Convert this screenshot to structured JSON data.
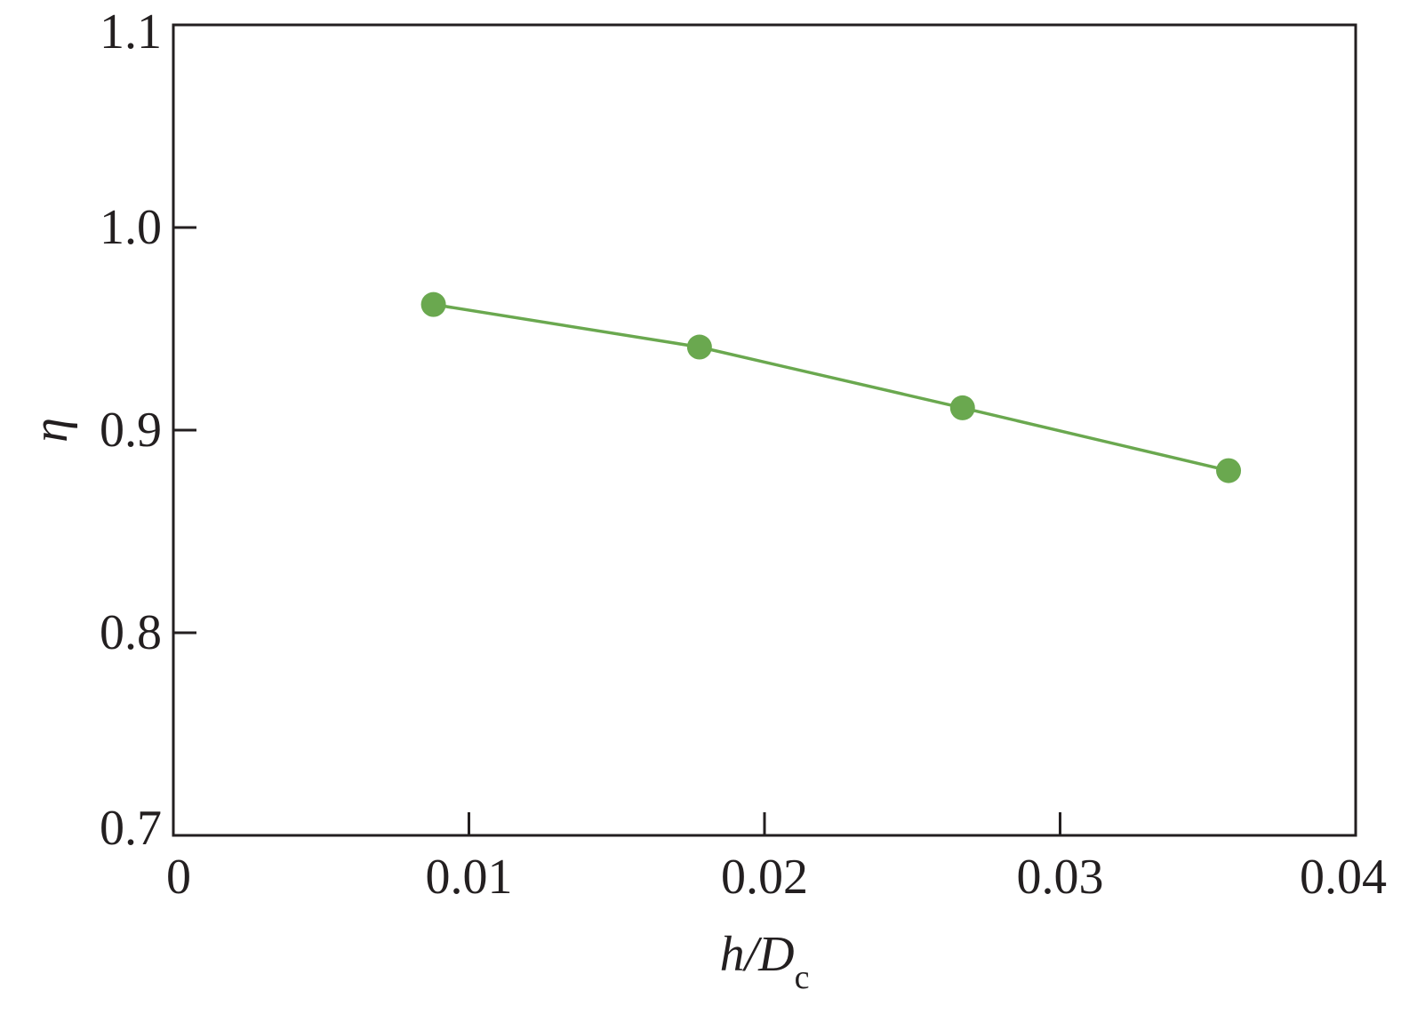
{
  "chart_data": {
    "type": "line",
    "xlabel": {
      "main": "h/D",
      "subscript": "c"
    },
    "ylabel": "η",
    "xlim": [
      0,
      0.04
    ],
    "ylim": [
      0.7,
      1.1
    ],
    "xticks": [
      0,
      0.01,
      0.02,
      0.03,
      0.04
    ],
    "xtick_labels": [
      "0",
      "0.01",
      "0.02",
      "0.03",
      "0.04"
    ],
    "yticks": [
      0.7,
      0.8,
      0.9,
      1.0,
      1.1
    ],
    "ytick_labels": [
      "0.7",
      "0.8",
      "0.9",
      "1.0",
      "1.1"
    ],
    "grid": false,
    "series": [
      {
        "color": "#6aa84f",
        "marker": "circle",
        "x": [
          0.0088,
          0.0178,
          0.0267,
          0.0357
        ],
        "y": [
          0.962,
          0.941,
          0.911,
          0.88
        ]
      }
    ]
  }
}
